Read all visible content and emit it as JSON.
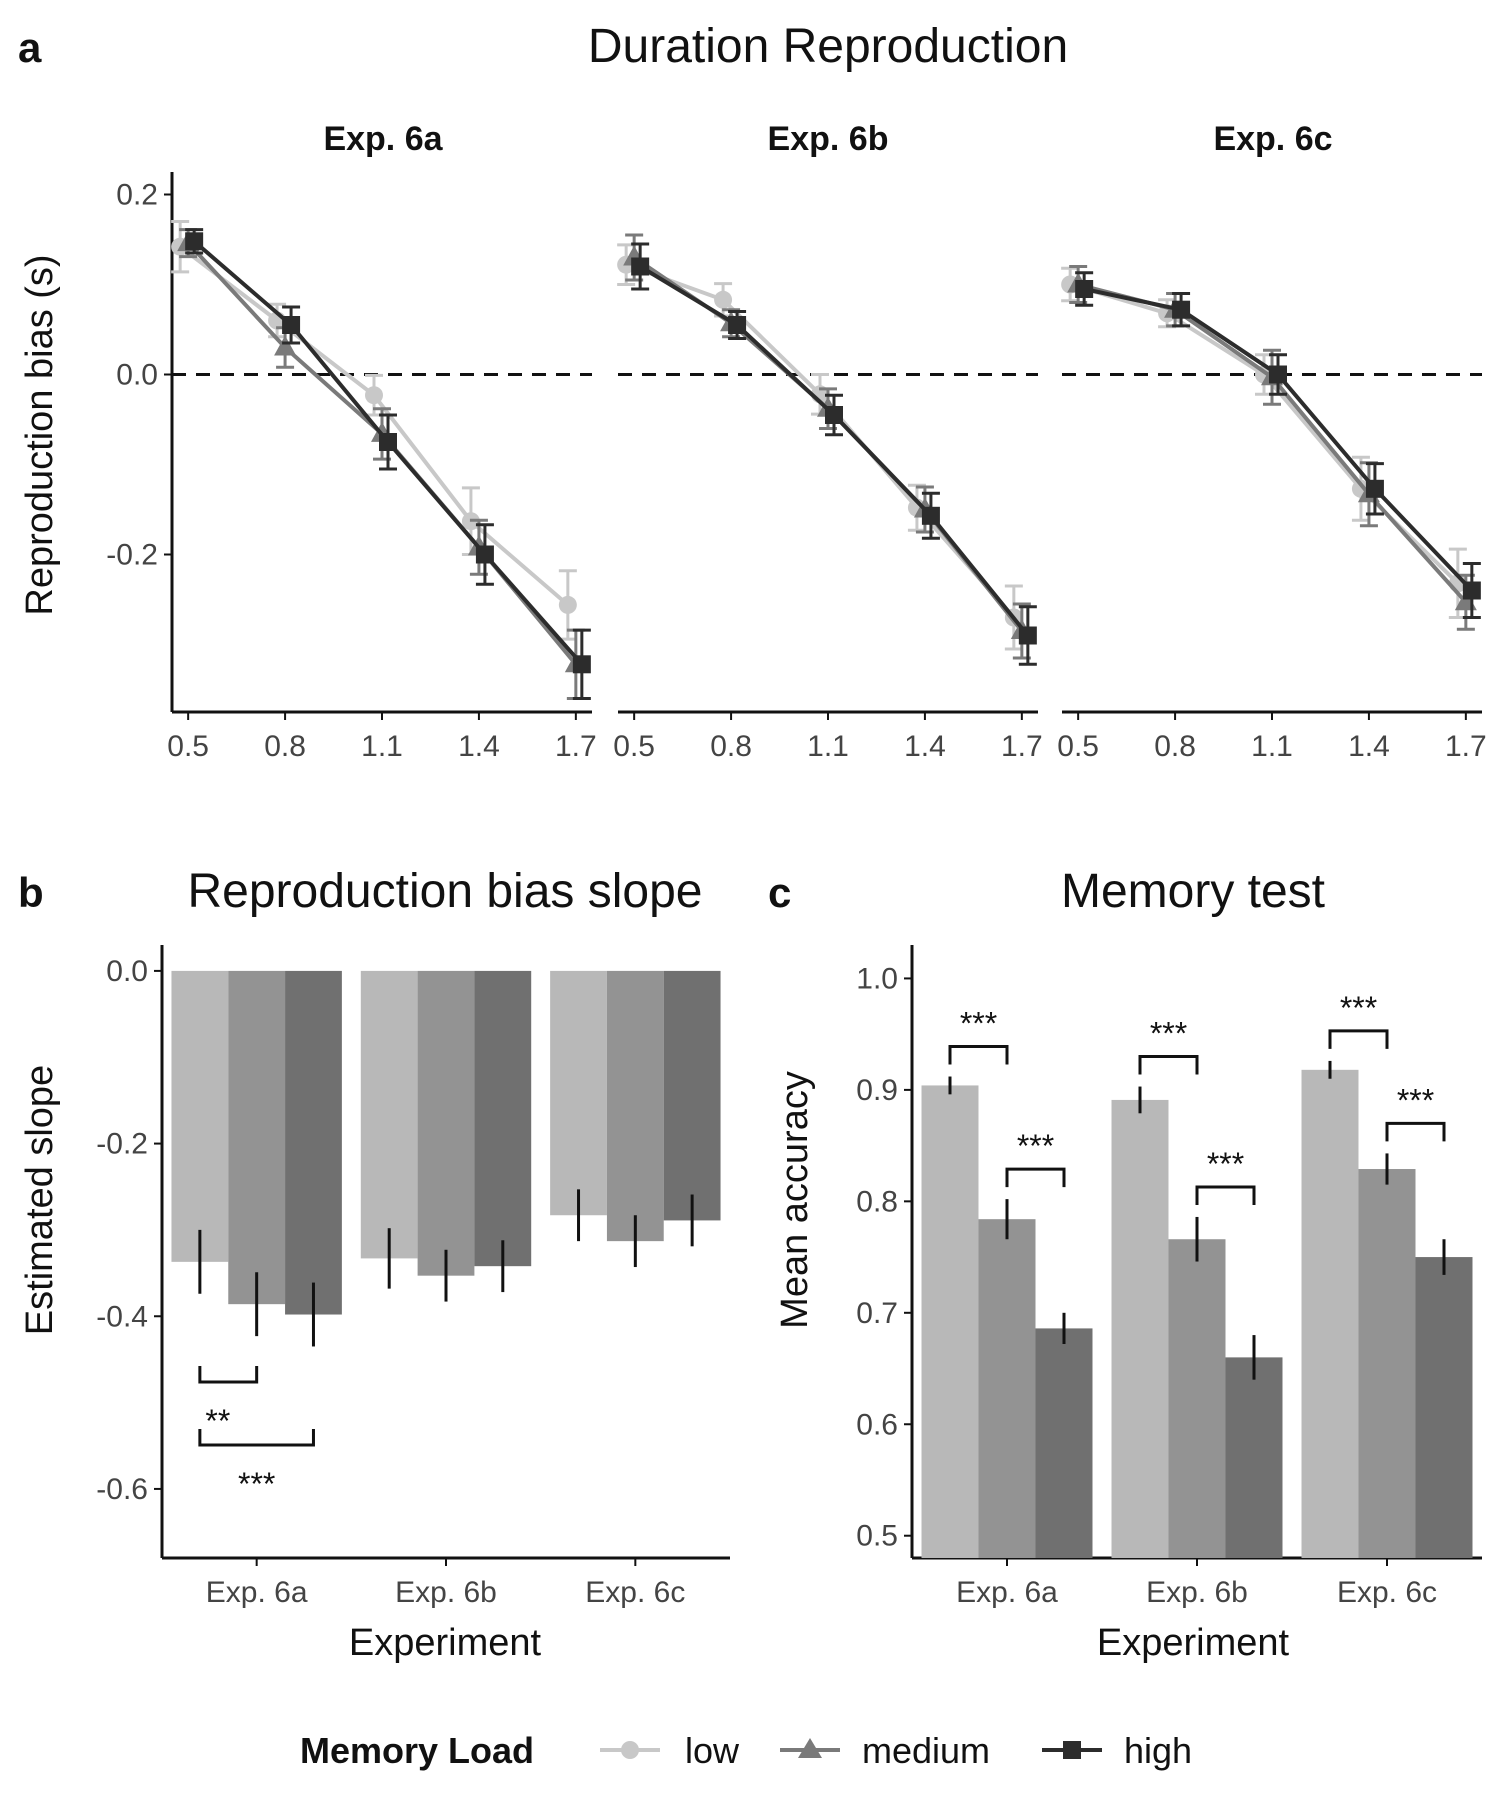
{
  "colors": {
    "low": "#c8c8c8",
    "medium": "#7a7a7a",
    "high": "#2c2c2c",
    "bar_low": "#b8b8b8",
    "bar_medium": "#939393",
    "bar_high": "#707070"
  },
  "legend": {
    "title": "Memory Load",
    "items": [
      {
        "label": "low",
        "marker": "circle"
      },
      {
        "label": "medium",
        "marker": "triangle"
      },
      {
        "label": "high",
        "marker": "square"
      }
    ]
  },
  "chart_data": [
    {
      "type": "line",
      "panel_letter": "a",
      "title": "Duration Reproduction",
      "ylabel": "Reproduction bias (s)",
      "xlabel": "",
      "x": [
        0.5,
        0.8,
        1.1,
        1.4,
        1.7
      ],
      "x_tick_labels": [
        "0.5",
        "0.8",
        "1.1",
        "1.4",
        "1.7"
      ],
      "xlim": [
        0.45,
        1.75
      ],
      "ylim": [
        -0.375,
        0.225
      ],
      "y_ticks": [
        0.2,
        0.0,
        -0.2
      ],
      "y_tick_labels": [
        "0.2",
        "0.0",
        "-0.2"
      ],
      "reference_line": {
        "y": 0,
        "style": "dashed"
      },
      "grid": false,
      "facets": [
        {
          "title": "Exp. 6a",
          "series": [
            {
              "name": "low",
              "values": [
                0.142,
                0.06,
                -0.023,
                -0.163,
                -0.256
              ],
              "errors": [
                0.028,
                0.018,
                0.022,
                0.037,
                0.038
              ]
            },
            {
              "name": "medium",
              "values": [
                0.146,
                0.03,
                -0.066,
                -0.192,
                -0.322
              ],
              "errors": [
                0.015,
                0.022,
                0.028,
                0.03,
                0.038
              ]
            },
            {
              "name": "high",
              "values": [
                0.148,
                0.055,
                -0.075,
                -0.2,
                -0.322
              ],
              "errors": [
                0.013,
                0.02,
                0.03,
                0.033,
                0.038
              ]
            }
          ]
        },
        {
          "title": "Exp. 6b",
          "series": [
            {
              "name": "low",
              "values": [
                0.122,
                0.083,
                -0.022,
                -0.148,
                -0.27
              ],
              "errors": [
                0.022,
                0.018,
                0.022,
                0.025,
                0.035
              ]
            },
            {
              "name": "medium",
              "values": [
                0.13,
                0.057,
                -0.038,
                -0.15,
                -0.285
              ],
              "errors": [
                0.025,
                0.015,
                0.022,
                0.025,
                0.03
              ]
            },
            {
              "name": "high",
              "values": [
                0.12,
                0.055,
                -0.045,
                -0.157,
                -0.29
              ],
              "errors": [
                0.025,
                0.015,
                0.022,
                0.025,
                0.032
              ]
            }
          ]
        },
        {
          "title": "Exp. 6c",
          "series": [
            {
              "name": "low",
              "values": [
                0.1,
                0.068,
                0.0,
                -0.127,
                -0.232
              ],
              "errors": [
                0.018,
                0.015,
                0.022,
                0.035,
                0.038
              ]
            },
            {
              "name": "medium",
              "values": [
                0.1,
                0.072,
                -0.003,
                -0.133,
                -0.253
              ],
              "errors": [
                0.02,
                0.018,
                0.03,
                0.035,
                0.03
              ]
            },
            {
              "name": "high",
              "values": [
                0.095,
                0.072,
                0.0,
                -0.127,
                -0.24
              ],
              "errors": [
                0.018,
                0.018,
                0.022,
                0.028,
                0.03
              ]
            }
          ]
        }
      ]
    },
    {
      "type": "bar",
      "panel_letter": "b",
      "title": "Reproduction bias slope",
      "xlabel": "Experiment",
      "ylabel": "Estimated slope",
      "categories": [
        "Exp. 6a",
        "Exp. 6b",
        "Exp. 6c"
      ],
      "ylim": [
        -0.68,
        0.03
      ],
      "y_ticks": [
        0.0,
        -0.2,
        -0.4,
        -0.6
      ],
      "y_tick_labels": [
        "0.0",
        "-0.2",
        "-0.4",
        "-0.6"
      ],
      "grid": false,
      "series": [
        {
          "name": "low",
          "values": [
            -0.337,
            -0.333,
            -0.283
          ],
          "errors": [
            0.037,
            0.035,
            0.03
          ]
        },
        {
          "name": "medium",
          "values": [
            -0.386,
            -0.353,
            -0.313
          ],
          "errors": [
            0.037,
            0.03,
            0.03
          ]
        },
        {
          "name": "high",
          "values": [
            -0.398,
            -0.342,
            -0.289
          ],
          "errors": [
            0.037,
            0.03,
            0.03
          ]
        }
      ],
      "significance": [
        {
          "category": "Exp. 6a",
          "from": "low",
          "to": "medium",
          "label": "**"
        },
        {
          "category": "Exp. 6a",
          "from": "low",
          "to": "high",
          "label": "***"
        }
      ]
    },
    {
      "type": "bar",
      "panel_letter": "c",
      "title": "Memory test",
      "xlabel": "Experiment",
      "ylabel": "Mean accuracy",
      "categories": [
        "Exp. 6a",
        "Exp. 6b",
        "Exp. 6c"
      ],
      "ylim": [
        0.48,
        1.03
      ],
      "y_ticks": [
        1.0,
        0.9,
        0.8,
        0.7,
        0.6,
        0.5
      ],
      "y_tick_labels": [
        "1.0",
        "0.9",
        "0.8",
        "0.7",
        "0.6",
        "0.5"
      ],
      "grid": false,
      "series": [
        {
          "name": "low",
          "values": [
            0.904,
            0.891,
            0.918
          ],
          "errors": [
            0.008,
            0.012,
            0.008
          ]
        },
        {
          "name": "medium",
          "values": [
            0.784,
            0.766,
            0.829
          ],
          "errors": [
            0.018,
            0.02,
            0.014
          ]
        },
        {
          "name": "high",
          "values": [
            0.686,
            0.66,
            0.75
          ],
          "errors": [
            0.014,
            0.02,
            0.016
          ]
        }
      ],
      "significance": [
        {
          "category": "Exp. 6a",
          "from": "low",
          "to": "medium",
          "label": "***"
        },
        {
          "category": "Exp. 6a",
          "from": "medium",
          "to": "high",
          "label": "***"
        },
        {
          "category": "Exp. 6b",
          "from": "low",
          "to": "medium",
          "label": "***"
        },
        {
          "category": "Exp. 6b",
          "from": "medium",
          "to": "high",
          "label": "***"
        },
        {
          "category": "Exp. 6c",
          "from": "low",
          "to": "medium",
          "label": "***"
        },
        {
          "category": "Exp. 6c",
          "from": "medium",
          "to": "high",
          "label": "***"
        }
      ]
    }
  ]
}
